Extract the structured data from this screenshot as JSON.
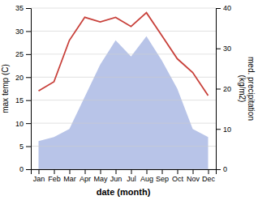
{
  "chart_data": {
    "type": "line",
    "categories": [
      "Jan",
      "Feb",
      "Mar",
      "Apr",
      "May",
      "Jun",
      "Jul",
      "Aug",
      "Sep",
      "Oct",
      "Nov",
      "Dec"
    ],
    "series": [
      {
        "type": "area",
        "axis": "y2",
        "color": "#b8c4e8",
        "values": [
          7,
          8,
          10,
          18,
          26,
          32,
          28,
          33,
          27,
          20,
          10,
          8
        ]
      },
      {
        "type": "line",
        "color": "#c8403a",
        "values": [
          17,
          19,
          28,
          33,
          32,
          33,
          31,
          34,
          29,
          24,
          21,
          16
        ]
      }
    ],
    "xlabel": "date (month)",
    "ylabel": "max temp (C)",
    "y2label": "med. precipitation\n(kg/m2)",
    "ylim": [
      0,
      35
    ],
    "yticks": [
      0,
      5,
      10,
      15,
      20,
      25,
      30,
      35
    ],
    "y2lim": [
      0,
      40
    ],
    "y2ticks": [
      0,
      10,
      20,
      30,
      40
    ],
    "grid": true
  }
}
